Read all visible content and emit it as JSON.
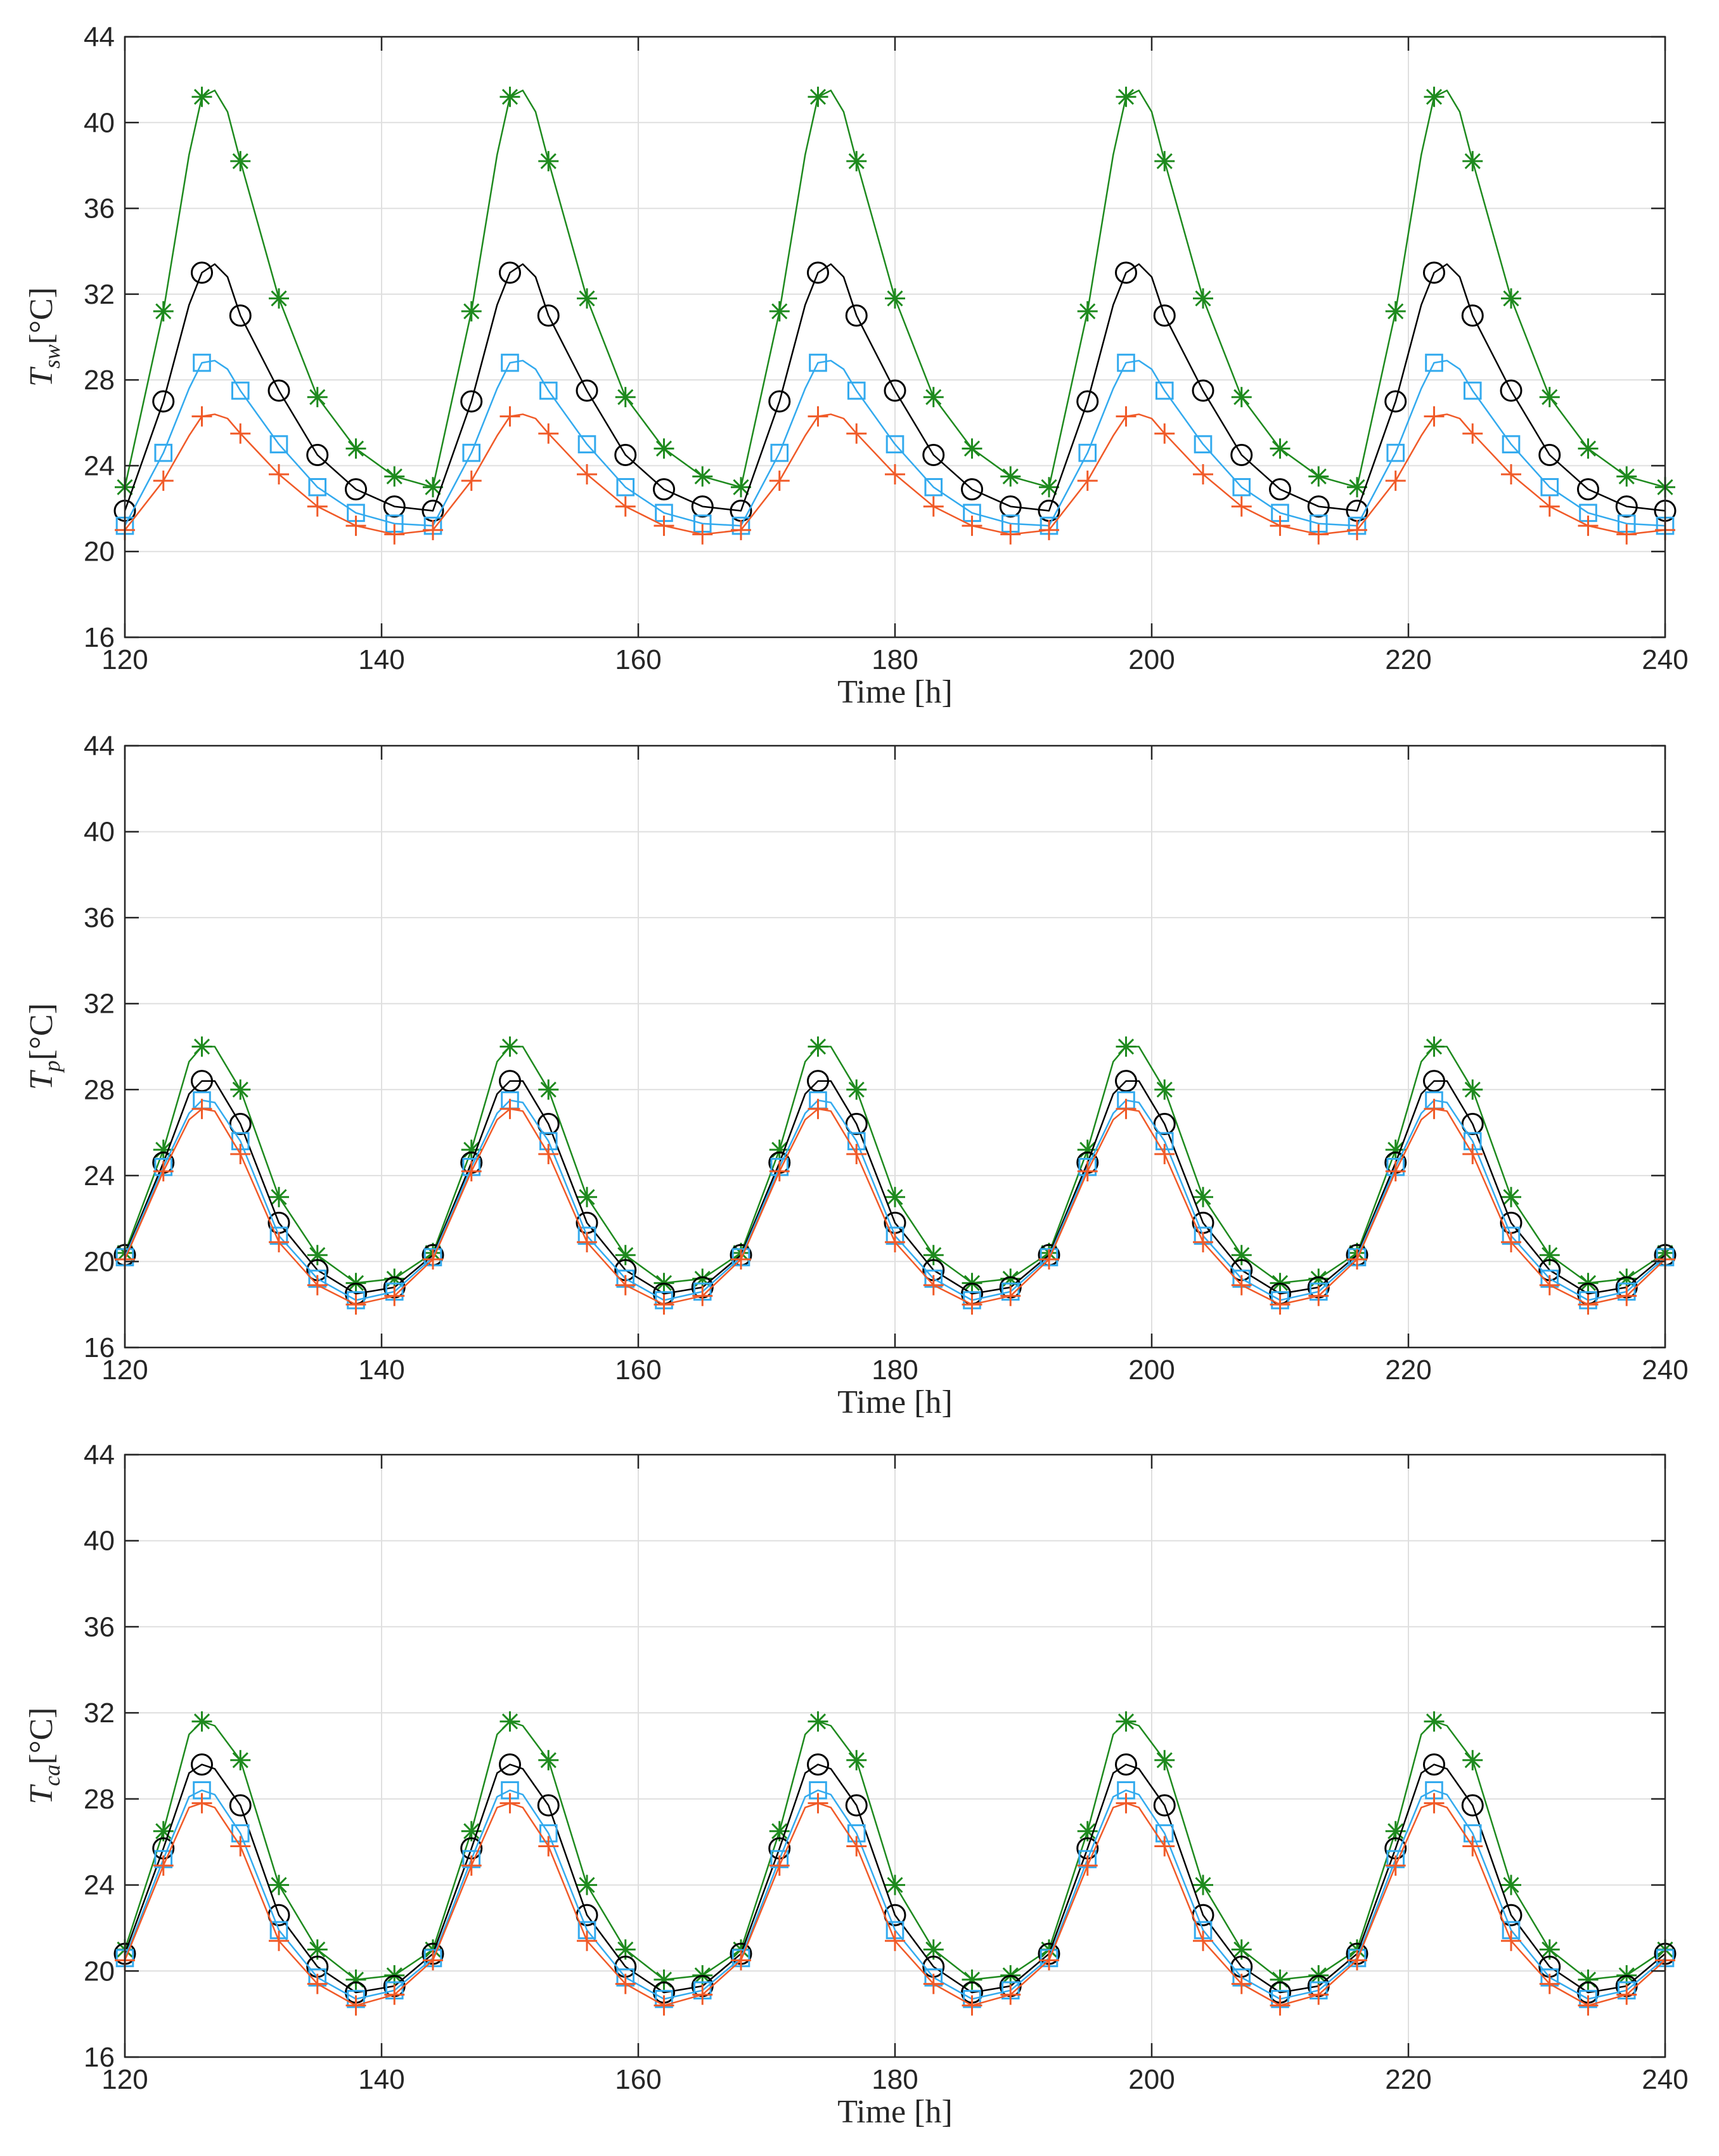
{
  "colors": {
    "star_series": "#1e8a1e",
    "circle_series": "#000000",
    "square_series": "#33aaee",
    "plus_series": "#f05a28"
  },
  "chart_data": [
    {
      "type": "line",
      "xlabel": "Time [h]",
      "ylabel": {
        "main": "T",
        "sub": "sw",
        "unit": "[°C]"
      },
      "xlim": [
        120,
        240
      ],
      "ylim": [
        16,
        44
      ],
      "xticks": [
        120,
        140,
        160,
        180,
        200,
        220,
        240
      ],
      "yticks": [
        16,
        20,
        24,
        28,
        32,
        36,
        40,
        44
      ],
      "grid": true,
      "period_h": 24,
      "day_profile_hours": [
        0,
        3,
        5,
        6,
        7,
        8,
        9,
        12,
        15,
        18,
        21,
        24
      ],
      "marker_hours": [
        0,
        3,
        6,
        9,
        12,
        15,
        18,
        21
      ],
      "series": [
        {
          "name": "star",
          "marker": "star",
          "color": "#1e8a1e",
          "values": [
            23.0,
            31.2,
            38.5,
            41.2,
            41.5,
            40.5,
            38.2,
            31.8,
            27.2,
            24.8,
            23.5,
            23.0
          ]
        },
        {
          "name": "circle",
          "marker": "circle",
          "color": "#000000",
          "values": [
            21.9,
            27.0,
            31.5,
            33.0,
            33.4,
            32.8,
            31.0,
            27.5,
            24.5,
            22.9,
            22.1,
            21.9
          ]
        },
        {
          "name": "square",
          "marker": "square",
          "color": "#33aaee",
          "values": [
            21.2,
            24.6,
            27.6,
            28.8,
            28.9,
            28.5,
            27.5,
            25.0,
            23.0,
            21.8,
            21.3,
            21.2
          ]
        },
        {
          "name": "plus",
          "marker": "plus",
          "color": "#f05a28",
          "values": [
            21.0,
            23.3,
            25.4,
            26.3,
            26.4,
            26.2,
            25.5,
            23.6,
            22.1,
            21.2,
            20.8,
            21.0
          ]
        }
      ]
    },
    {
      "type": "line",
      "xlabel": "Time [h]",
      "ylabel": {
        "main": "T",
        "sub": "p",
        "unit": "[°C]"
      },
      "xlim": [
        120,
        240
      ],
      "ylim": [
        16,
        44
      ],
      "xticks": [
        120,
        140,
        160,
        180,
        200,
        220,
        240
      ],
      "yticks": [
        16,
        20,
        24,
        28,
        32,
        36,
        40,
        44
      ],
      "grid": true,
      "period_h": 24,
      "day_profile_hours": [
        0,
        3,
        5,
        6,
        7,
        9,
        12,
        15,
        18,
        21,
        24
      ],
      "marker_hours": [
        0,
        3,
        6,
        9,
        12,
        15,
        18,
        21
      ],
      "series": [
        {
          "name": "star",
          "marker": "star",
          "color": "#1e8a1e",
          "values": [
            20.4,
            25.2,
            29.3,
            30.0,
            30.0,
            28.0,
            23.0,
            20.3,
            19.0,
            19.2,
            20.4
          ]
        },
        {
          "name": "circle",
          "marker": "circle",
          "color": "#000000",
          "values": [
            20.3,
            24.6,
            27.8,
            28.4,
            28.4,
            26.4,
            21.8,
            19.6,
            18.5,
            18.8,
            20.3
          ]
        },
        {
          "name": "square",
          "marker": "square",
          "color": "#33aaee",
          "values": [
            20.2,
            24.4,
            26.9,
            27.5,
            27.4,
            25.6,
            21.2,
            19.2,
            18.2,
            18.6,
            20.2
          ]
        },
        {
          "name": "plus",
          "marker": "plus",
          "color": "#f05a28",
          "values": [
            20.1,
            24.2,
            26.6,
            27.1,
            27.0,
            25.0,
            20.9,
            18.9,
            18.0,
            18.4,
            20.1
          ]
        }
      ]
    },
    {
      "type": "line",
      "xlabel": "Time [h]",
      "ylabel": {
        "main": "T",
        "sub": "ca",
        "unit": "[°C]"
      },
      "xlim": [
        120,
        240
      ],
      "ylim": [
        16,
        44
      ],
      "xticks": [
        120,
        140,
        160,
        180,
        200,
        220,
        240
      ],
      "yticks": [
        16,
        20,
        24,
        28,
        32,
        36,
        40,
        44
      ],
      "grid": true,
      "period_h": 24,
      "day_profile_hours": [
        0,
        3,
        5,
        6,
        7,
        9,
        12,
        15,
        18,
        21,
        24
      ],
      "marker_hours": [
        0,
        3,
        6,
        9,
        12,
        15,
        18,
        21
      ],
      "series": [
        {
          "name": "star",
          "marker": "star",
          "color": "#1e8a1e",
          "values": [
            21.0,
            26.5,
            31.0,
            31.6,
            31.4,
            29.8,
            24.0,
            21.0,
            19.6,
            19.8,
            21.0
          ]
        },
        {
          "name": "circle",
          "marker": "circle",
          "color": "#000000",
          "values": [
            20.8,
            25.7,
            29.2,
            29.6,
            29.4,
            27.7,
            22.6,
            20.2,
            19.0,
            19.3,
            20.8
          ]
        },
        {
          "name": "square",
          "marker": "square",
          "color": "#33aaee",
          "values": [
            20.6,
            25.2,
            28.1,
            28.4,
            28.2,
            26.4,
            21.9,
            19.7,
            18.7,
            19.1,
            20.6
          ]
        },
        {
          "name": "plus",
          "marker": "plus",
          "color": "#f05a28",
          "values": [
            20.5,
            24.9,
            27.6,
            27.8,
            27.6,
            25.8,
            21.4,
            19.4,
            18.4,
            18.9,
            20.5
          ]
        }
      ]
    }
  ]
}
